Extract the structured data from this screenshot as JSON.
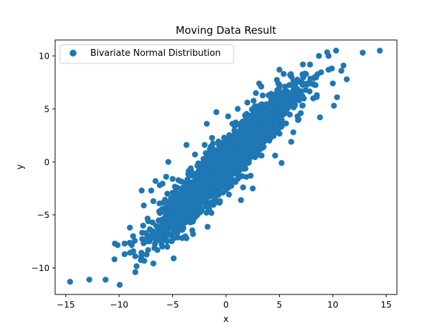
{
  "chart_data": {
    "type": "scatter",
    "title": "Moving Data Result",
    "xlabel": "x",
    "ylabel": "y",
    "xlim": [
      -16,
      16
    ],
    "ylim": [
      -12.5,
      11.5
    ],
    "xticks": [
      -15,
      -10,
      -5,
      0,
      5,
      10,
      15
    ],
    "yticks": [
      -10,
      -5,
      0,
      5,
      10
    ],
    "grid": false,
    "legend_position": "top-left",
    "series": [
      {
        "name": "Bivariate Normal Distribution",
        "color": "#1f77b4",
        "description": "dense elliptical cloud of ~thousands of points centered near (0,0), strongly positively correlated (slope ~1)",
        "points": [
          [
            -14.6,
            -11.3
          ],
          [
            -12.8,
            -11.1
          ],
          [
            -10.4,
            -7.7
          ],
          [
            -9.5,
            -8.7
          ],
          [
            -8.5,
            -8.9
          ],
          [
            -9.5,
            -7.7
          ],
          [
            -8.7,
            -7.0
          ],
          [
            -9.0,
            -6.2
          ],
          [
            -7.5,
            -6.7
          ],
          [
            -7.7,
            -4.1
          ],
          [
            -7.9,
            -2.7
          ],
          [
            -7.0,
            -2.7
          ],
          [
            -5.6,
            -6.3
          ],
          [
            -5.5,
            -8.0
          ],
          [
            -4.9,
            -9.1
          ],
          [
            -3.7,
            -7.2
          ],
          [
            -5.5,
            -3.0
          ],
          [
            -5.6,
            -1.4
          ],
          [
            -5.0,
            -1.6
          ],
          [
            -5.5,
            -3.9
          ],
          [
            -5.4,
            0.0
          ],
          [
            -3.7,
            1.6
          ],
          [
            -3.3,
            -0.6
          ],
          [
            -4.2,
            -5.0
          ],
          [
            -2.0,
            1.6
          ],
          [
            -1.8,
            3.6
          ],
          [
            -2.0,
            -3.7
          ],
          [
            -1.0,
            -3.8
          ],
          [
            -1.0,
            1.1
          ],
          [
            -0.4,
            -2.1
          ],
          [
            0.0,
            0.0
          ],
          [
            0.4,
            1.4
          ],
          [
            0.7,
            -0.3
          ],
          [
            0.2,
            4.3
          ],
          [
            1.0,
            2.6
          ],
          [
            1.6,
            -2.4
          ],
          [
            2.0,
            5.6
          ],
          [
            1.4,
            -3.6
          ],
          [
            2.3,
            -1.3
          ],
          [
            2.6,
            3.9
          ],
          [
            3.2,
            1.2
          ],
          [
            3.3,
            7.1
          ],
          [
            2.8,
            6.5
          ],
          [
            4.0,
            4.3
          ],
          [
            4.6,
            0.6
          ],
          [
            4.8,
            2.9
          ],
          [
            5.0,
            8.7
          ],
          [
            5.2,
            -0.1
          ],
          [
            5.6,
            6.1
          ],
          [
            5.4,
            8.3
          ],
          [
            6.1,
            1.9
          ],
          [
            6.7,
            4.3
          ],
          [
            7.2,
            9.2
          ],
          [
            7.6,
            7.3
          ],
          [
            8.5,
            6.3
          ],
          [
            8.7,
            10.0
          ],
          [
            8.8,
            4.2
          ],
          [
            9.6,
            8.7
          ],
          [
            9.6,
            10.0
          ],
          [
            10.0,
            7.4
          ],
          [
            10.1,
            5.3
          ],
          [
            10.4,
            6.1
          ],
          [
            10.8,
            8.6
          ],
          [
            11.3,
            7.8
          ],
          [
            10.3,
            10.5
          ],
          [
            12.8,
            10.3
          ],
          [
            14.4,
            10.5
          ],
          [
            11.0,
            9.1
          ],
          [
            -2.9,
            0.7
          ],
          [
            -6.6,
            -1.8
          ],
          [
            -6.2,
            -2.2
          ],
          [
            -6.8,
            -3.7
          ],
          [
            0.6,
            3.6
          ],
          [
            1.8,
            1.0
          ],
          [
            3.1,
            7.4
          ],
          [
            -3.6,
            -5.6
          ],
          [
            6.3,
            2.8
          ],
          [
            7.0,
            4.6
          ],
          [
            -0.9,
            4.7
          ],
          [
            2.5,
            -2.5
          ]
        ]
      }
    ]
  }
}
